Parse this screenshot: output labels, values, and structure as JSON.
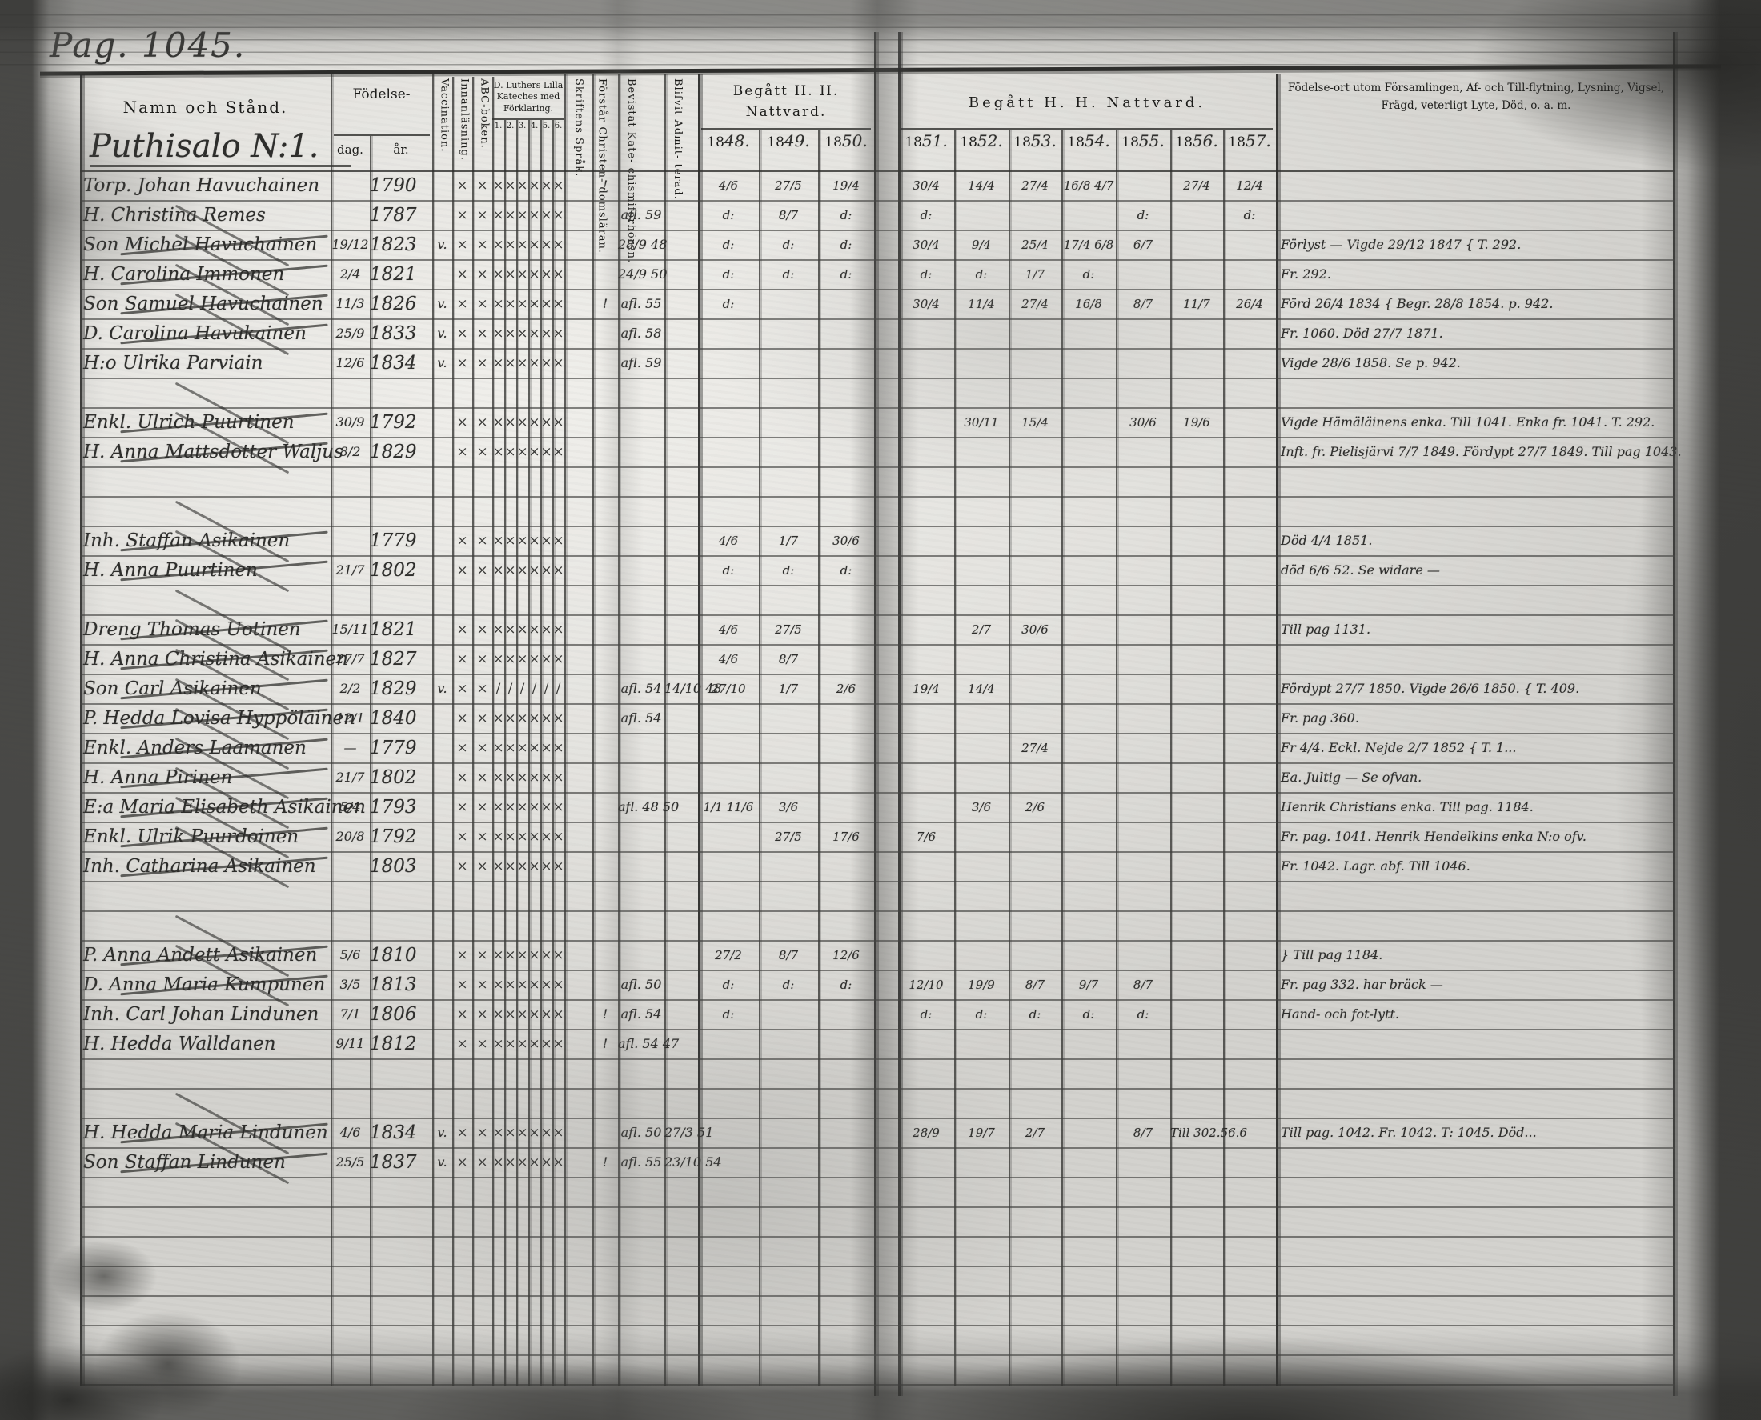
{
  "page": {
    "label": "Pag. 1045.",
    "village": "Puthisalo N:1."
  },
  "headers": {
    "namn": "Namn och Stånd.",
    "fodelse": "Födelse-",
    "dag": "dag.",
    "ar": "år.",
    "vaccination": "Vaccination.",
    "innanlasning": "Innanläsning.",
    "abc": "ABC-boken.",
    "kateches": "D. Luthers Lilla Kateches med Förklaring.",
    "kateches_nums": [
      "1.",
      "2.",
      "3.",
      "4.",
      "5.",
      "6."
    ],
    "skrift": "Skriftens Språk.",
    "forstar": "Förstår Christen- domsläran.",
    "bevistat": "Bevistat Kate- chismiförhören.",
    "admitterad": "Blifvit Admit- terad.",
    "nattvard_left": "Begått H. H. Nattvard.",
    "nattvard_right": "Begått H. H. Nattvard.",
    "years_left": [
      "1848.",
      "1849.",
      "1850."
    ],
    "years_right": [
      "1851.",
      "1852.",
      "1853.",
      "1854.",
      "1855.",
      "1856.",
      "1857."
    ],
    "notes": "Födelse-ort utom Församlingen, Af- och Till-flytning, Lysning, Vigsel, Frägd, veterligt Lyte, Död, o. a. m."
  },
  "rows": [
    {
      "name": "Torp. Johan Havuchainen",
      "ar": "1790",
      "marks": "xxxxxxxx",
      "forstar": "!",
      "y48": "4/6",
      "y49": "27/5",
      "y50": "19/4",
      "y51": "30/4",
      "y52": "14/4",
      "y53": "27/4",
      "y54": "16/8 4/7",
      "y56": "27/4",
      "y57": "12/4"
    },
    {
      "name": "H. Christina Remes",
      "ar": "1787",
      "marks": "xxxxxxxx",
      "bevistat": "afl. 59",
      "y48": "d:",
      "y49": "8/7",
      "y50": "d:",
      "y51": "d:",
      "y55": "d:",
      "y57": "d:"
    },
    {
      "name": "Son Michel Havuchainen",
      "dag": "19/12",
      "ar": "1823",
      "vacc": "v.",
      "marks": "xxxxxxxx",
      "bevistat": "28/9 48",
      "y48": "d:",
      "y49": "d:",
      "y50": "d:",
      "y51": "30/4",
      "y52": "9/4",
      "y53": "25/4",
      "y54": "17/4 6/8",
      "y55": "6/7",
      "note": "Förlyst — Vigde 29/12 1847 { T. 292.",
      "struck": true
    },
    {
      "name": "H. Carolina Immonen",
      "dag": "2/4",
      "ar": "1821",
      "marks": "xxxxxxxx",
      "bevistat": "24/9 50",
      "y48": "d:",
      "y49": "d:",
      "y50": "d:",
      "y51": "d:",
      "y52": "d:",
      "y53": "1/7",
      "y54": "d:",
      "note": "Fr. 292.",
      "struck": true
    },
    {
      "name": "Son Samuel Havuchainen",
      "dag": "11/3",
      "ar": "1826",
      "vacc": "v.",
      "marks": "xxxxxxxx",
      "forstar": "!",
      "bevistat": "afl. 55",
      "y48": "d:",
      "y51": "30/4",
      "y52": "11/4",
      "y53": "27/4",
      "y54": "16/8",
      "y55": "8/7",
      "y56": "11/7",
      "y57": "26/4",
      "note": "Förd 26/4 1834 { Begr. 28/8 1854. p. 942.",
      "struck": true
    },
    {
      "name": "D. Carolina Havukainen",
      "dag": "25/9",
      "ar": "1833",
      "vacc": "v.",
      "marks": "xxxxxxxx",
      "bevistat": "afl. 58",
      "note": "Fr. 1060. Död 27/7 1871.",
      "struck": true
    },
    {
      "name": "H:o Ulrika Parviain",
      "dag": "12/6",
      "ar": "1834",
      "vacc": "v.",
      "marks": "xxxxxxxx",
      "bevistat": "afl. 59",
      "note": "Vigde 28/6 1858. Se p. 942."
    },
    {},
    {
      "name": "Enkl. Ulrich Puurtinen",
      "dag": "30/9",
      "ar": "1792",
      "marks": "xxxxxxxx",
      "y52": "30/11",
      "y53": "15/4",
      "y55": "30/6",
      "y56": "19/6",
      "note": "Vigde Hämäläinens enka. Till 1041. Enka fr. 1041. T. 292.",
      "struck": true
    },
    {
      "name": "H. Anna Mattsdotter Waljus",
      "dag": "8/2",
      "ar": "1829",
      "marks": "xxxxxxxx",
      "note": "Inft. fr. Pielisjärvi 7/7 1849. Fördypt 27/7 1849. Till pag 1043.",
      "struck": true
    },
    {},
    {},
    {
      "name": "Inh. Staffan Asikainen",
      "ar": "1779",
      "marks": "xxxxxxxx",
      "y48": "4/6",
      "y49": "1/7",
      "y50": "30/6",
      "note": "Död 4/4 1851.",
      "struck": true
    },
    {
      "name": "H. Anna Puurtinen",
      "dag": "21/7",
      "ar": "1802",
      "marks": "xxxxxxxx",
      "y48": "d:",
      "y49": "d:",
      "y50": "d:",
      "note": "död 6/6 52. Se widare —",
      "struck": true
    },
    {},
    {
      "name": "Dreng Thomas Uotinen",
      "dag": "15/11",
      "ar": "1821",
      "marks": "xxxxxxxx",
      "y48": "4/6",
      "y49": "27/5",
      "y52": "2/7",
      "y53": "30/6",
      "note": "Till pag 1131.",
      "struck": true
    },
    {
      "name": "H. Anna Christina Asikainen",
      "dag": "27/7",
      "ar": "1827",
      "marks": "xxxxxxxx",
      "y48": "4/6",
      "y49": "8/7",
      "struck": true
    },
    {
      "name": "Son Carl Asikainen",
      "dag": "2/2",
      "ar": "1829",
      "vacc": "v.",
      "marks": "xx//////",
      "bevistat": "afl. 54",
      "adm": "14/10 48",
      "y48": "27/10",
      "y49": "1/7",
      "y50": "2/6",
      "y51": "19/4",
      "y52": "14/4",
      "note": "Fördypt 27/7 1850. Vigde 26/6 1850. { T. 409.",
      "struck": true
    },
    {
      "name": "P. Hedda Lovisa Hyppöläinen",
      "dag": "12/1",
      "ar": "1840",
      "marks": "xxxxxxxx",
      "bevistat": "afl. 54",
      "note": "Fr. pag 360.",
      "struck": true
    },
    {
      "name": "Enkl. Anders Laamanen",
      "dag": "—",
      "ar": "1779",
      "marks": "xxxxxxxx",
      "y53": "27/4",
      "note": "Fr 4/4. Eckl. Nejde 2/7 1852 { T. 1...",
      "struck": true
    },
    {
      "name": "H. Anna Pirinen",
      "dag": "21/7",
      "ar": "1802",
      "marks": "xxxxxxxx",
      "note": "Ea. Jultig — Se ofvan.",
      "struck": true
    },
    {
      "name": "E:a Maria Elisabeth Asikainen",
      "dag": "5/4",
      "ar": "1793",
      "marks": "xxxxxxxx",
      "bevistat": "afl. 48 50",
      "y48": "1/1 11/6",
      "y49": "3/6",
      "y52": "3/6",
      "y53": "2/6",
      "note": "Henrik Christians enka. Till pag. 1184.",
      "struck": true
    },
    {
      "name": "Enkl. Ulrik Puurdoinen",
      "dag": "20/8",
      "ar": "1792",
      "marks": "xxxxxxxx",
      "y49": "27/5",
      "y50": "17/6",
      "y51": "7/6",
      "note": "Fr. pag. 1041. Henrik Hendelkins enka N:o ofv.",
      "struck": true
    },
    {
      "name": "Inh. Catharina Asikainen",
      "ar": "1803",
      "marks": "xxxxxxxx",
      "note": "Fr. 1042. Lagr. abf. Till 1046.",
      "struck": true
    },
    {},
    {},
    {
      "name": "P. Anna Andett Asikainen",
      "dag": "5/6",
      "ar": "1810",
      "marks": "xxxxxxxx",
      "y48": "27/2",
      "y49": "8/7",
      "y50": "12/6",
      "note": "} Till pag 1184.",
      "struck": true
    },
    {
      "name": "D. Anna Maria Kumpunen",
      "dag": "3/5",
      "ar": "1813",
      "marks": "xxxxxxxx",
      "bevistat": "afl. 50",
      "y48": "d:",
      "y49": "d:",
      "y50": "d:",
      "y51": "12/10",
      "y52": "19/9",
      "y53": "8/7",
      "y54": "9/7",
      "y55": "8/7",
      "note": "Fr. pag 332. har bräck —",
      "struck": true
    },
    {
      "name": "Inh. Carl Johan Lindunen",
      "dag": "7/1",
      "ar": "1806",
      "marks": "xxxxxxxx",
      "forstar": "!",
      "bevistat": "afl. 54",
      "y48": "d:",
      "y51": "d:",
      "y52": "d:",
      "y53": "d:",
      "y54": "d:",
      "y55": "d:",
      "note": "Hand- och fot-lytt."
    },
    {
      "name": "H. Hedda Walldanen",
      "dag": "9/11",
      "ar": "1812",
      "marks": "xxxxxxxx",
      "forstar": "!",
      "bevistat": "afl. 54 47"
    },
    {},
    {},
    {
      "name": "H. Hedda Maria Lindunen",
      "dag": "4/6",
      "ar": "1834",
      "vacc": "v.",
      "marks": "xxxxxxxx",
      "bevistat": "afl. 50",
      "adm": "27/3 51",
      "y51": "28/9",
      "y52": "19/7",
      "y53": "2/7",
      "y55": "8/7",
      "y56": "Till 302.56.6",
      "note": "Till pag. 1042. Fr. 1042. T: 1045. Död...",
      "struck": true
    },
    {
      "name": "Son Staffan Lindunen",
      "dag": "25/5",
      "ar": "1837",
      "vacc": "v.",
      "marks": "xxxxxxxx",
      "forstar": "!",
      "bevistat": "afl. 55",
      "adm": "23/10 54",
      "struck": true
    }
  ]
}
